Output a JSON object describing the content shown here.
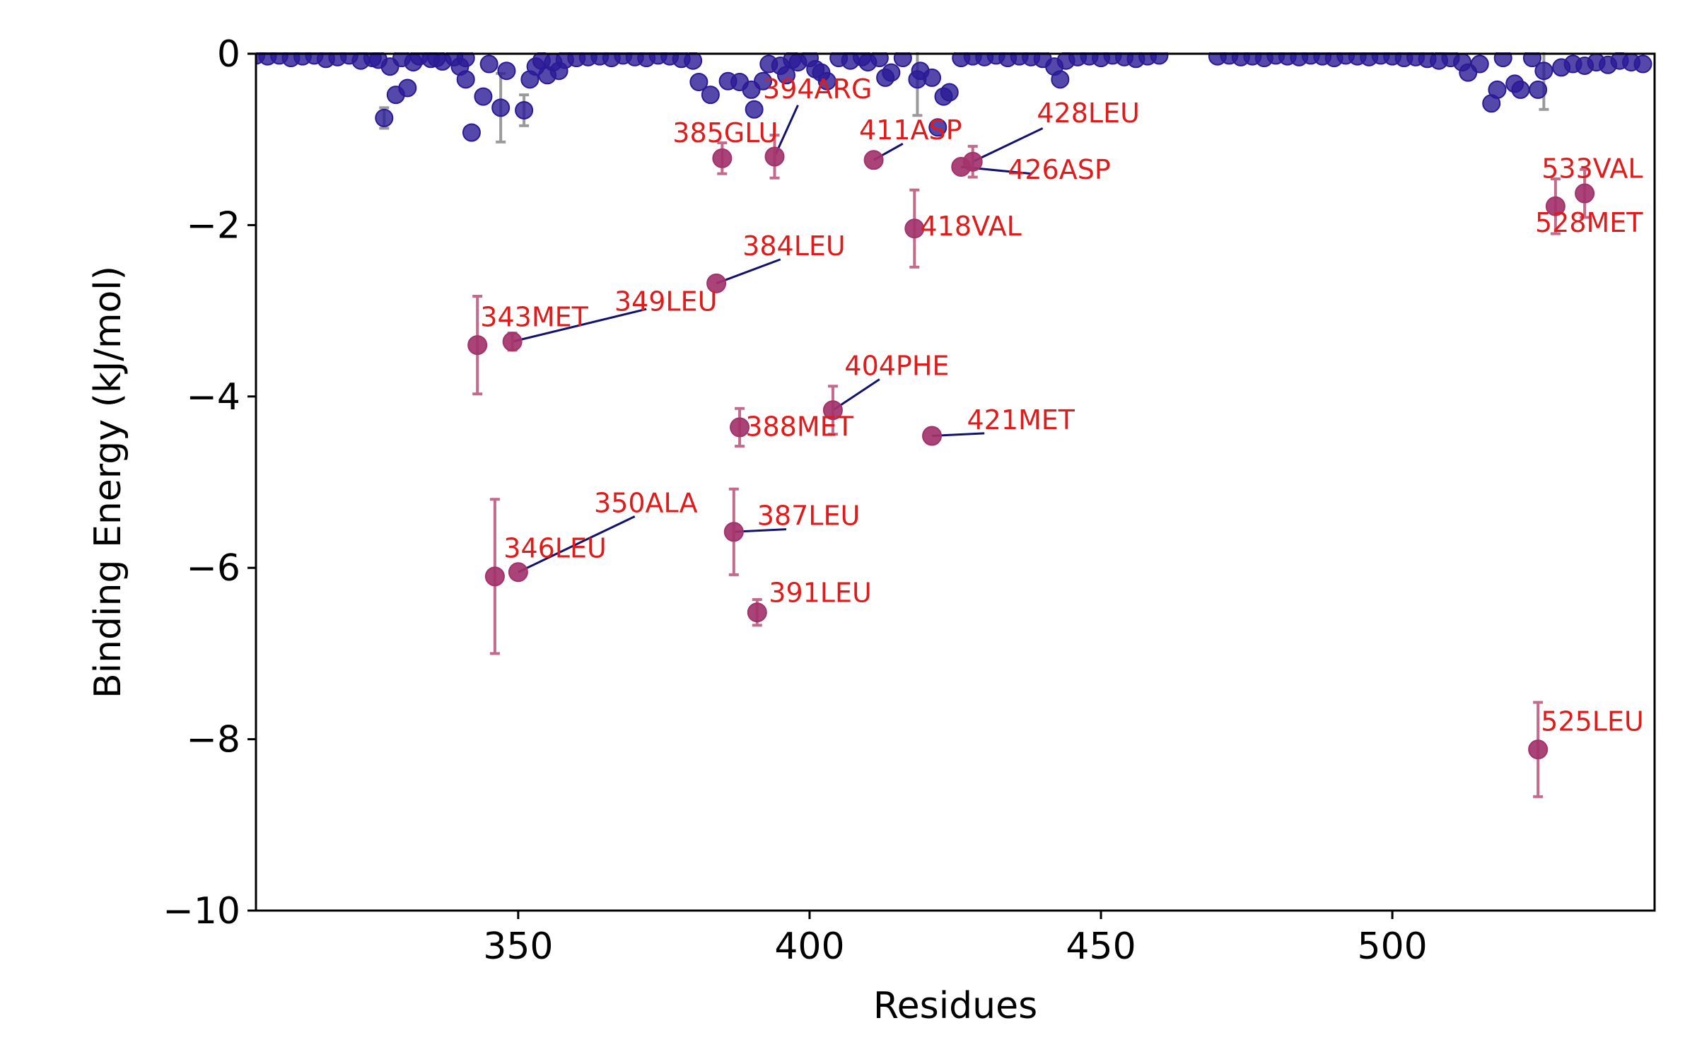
{
  "chart_data": {
    "type": "scatter",
    "title": "",
    "xlabel": "Residues",
    "ylabel": "Binding Energy (kJ/mol)",
    "xlim": [
      305,
      545
    ],
    "ylim": [
      -10,
      0
    ],
    "xticks": [
      350,
      400,
      450,
      500
    ],
    "yticks": [
      0,
      -2,
      -4,
      -6,
      -8,
      -10
    ],
    "xtick_labels": [
      "350",
      "400",
      "450",
      "500"
    ],
    "ytick_labels": [
      "0",
      "−2",
      "−4",
      "−6",
      "−8",
      "−10"
    ],
    "grid": false,
    "legend": "none",
    "colors": {
      "background_point": "#2a1a96",
      "background_error": "#9a9a9a",
      "hotspot_point": "#a3336b",
      "hotspot_error": "#c46b8c",
      "label_text": "#e01b1b",
      "leader_line": "#12126e",
      "axis": "#000000"
    },
    "background_residues": [
      {
        "x": 305,
        "y": -0.02
      },
      {
        "x": 307,
        "y": -0.03
      },
      {
        "x": 309,
        "y": -0.02
      },
      {
        "x": 311,
        "y": -0.05
      },
      {
        "x": 313,
        "y": -0.03
      },
      {
        "x": 315,
        "y": -0.02
      },
      {
        "x": 317,
        "y": -0.06
      },
      {
        "x": 319,
        "y": -0.04
      },
      {
        "x": 321,
        "y": -0.02
      },
      {
        "x": 323,
        "y": -0.08
      },
      {
        "x": 325,
        "y": -0.05
      },
      {
        "x": 326,
        "y": -0.07
      },
      {
        "x": 328,
        "y": -0.15
      },
      {
        "x": 330,
        "y": -0.05
      },
      {
        "x": 332,
        "y": -0.1
      },
      {
        "x": 333,
        "y": -0.03
      },
      {
        "x": 335,
        "y": -0.06
      },
      {
        "x": 337,
        "y": -0.09
      },
      {
        "x": 339,
        "y": -0.04
      },
      {
        "x": 341,
        "y": -0.05
      },
      {
        "x": 327,
        "y": -0.75,
        "err": 0.12
      },
      {
        "x": 329,
        "y": -0.48
      },
      {
        "x": 331,
        "y": -0.4
      },
      {
        "x": 336,
        "y": -0.05
      },
      {
        "x": 340,
        "y": -0.15
      },
      {
        "x": 341,
        "y": -0.3
      },
      {
        "x": 342,
        "y": -0.92
      },
      {
        "x": 344,
        "y": -0.5
      },
      {
        "x": 345,
        "y": -0.12
      },
      {
        "x": 347,
        "y": -0.63,
        "err": 0.4
      },
      {
        "x": 348,
        "y": -0.2
      },
      {
        "x": 351,
        "y": -0.66,
        "err": 0.18
      },
      {
        "x": 352,
        "y": -0.3
      },
      {
        "x": 353,
        "y": -0.15
      },
      {
        "x": 354,
        "y": -0.08
      },
      {
        "x": 355,
        "y": -0.25
      },
      {
        "x": 356,
        "y": -0.1
      },
      {
        "x": 357,
        "y": -0.2
      },
      {
        "x": 358,
        "y": -0.07
      },
      {
        "x": 360,
        "y": -0.05
      },
      {
        "x": 362,
        "y": -0.04
      },
      {
        "x": 364,
        "y": -0.03
      },
      {
        "x": 366,
        "y": -0.05
      },
      {
        "x": 368,
        "y": -0.02
      },
      {
        "x": 370,
        "y": -0.04
      },
      {
        "x": 372,
        "y": -0.05
      },
      {
        "x": 374,
        "y": -0.02
      },
      {
        "x": 376,
        "y": -0.03
      },
      {
        "x": 378,
        "y": -0.06
      },
      {
        "x": 380,
        "y": -0.08
      },
      {
        "x": 381,
        "y": -0.33
      },
      {
        "x": 383,
        "y": -0.48
      },
      {
        "x": 386,
        "y": -0.32
      },
      {
        "x": 388,
        "y": -0.33
      },
      {
        "x": 390,
        "y": -0.42
      },
      {
        "x": 390.5,
        "y": -0.65
      },
      {
        "x": 392,
        "y": -0.32
      },
      {
        "x": 393,
        "y": -0.12
      },
      {
        "x": 395,
        "y": -0.14
      },
      {
        "x": 396,
        "y": -0.25
      },
      {
        "x": 397,
        "y": -0.07
      },
      {
        "x": 398,
        "y": -0.1
      },
      {
        "x": 400,
        "y": -0.05
      },
      {
        "x": 401,
        "y": -0.18
      },
      {
        "x": 402,
        "y": -0.22
      },
      {
        "x": 403,
        "y": -0.32
      },
      {
        "x": 405,
        "y": -0.05
      },
      {
        "x": 407,
        "y": -0.08
      },
      {
        "x": 409,
        "y": -0.04
      },
      {
        "x": 410,
        "y": -0.1
      },
      {
        "x": 412,
        "y": -0.05
      },
      {
        "x": 413,
        "y": -0.28
      },
      {
        "x": 414,
        "y": -0.22
      },
      {
        "x": 416,
        "y": -0.05
      },
      {
        "x": 418.5,
        "y": -0.3,
        "err": 0.42
      },
      {
        "x": 419,
        "y": -0.2
      },
      {
        "x": 421,
        "y": -0.28
      },
      {
        "x": 422,
        "y": -0.86
      },
      {
        "x": 423,
        "y": -0.5
      },
      {
        "x": 424,
        "y": -0.45
      },
      {
        "x": 426,
        "y": -0.05
      },
      {
        "x": 428,
        "y": -0.03
      },
      {
        "x": 430,
        "y": -0.04
      },
      {
        "x": 432,
        "y": -0.02
      },
      {
        "x": 434,
        "y": -0.05
      },
      {
        "x": 436,
        "y": -0.03
      },
      {
        "x": 438,
        "y": -0.04
      },
      {
        "x": 440,
        "y": -0.06
      },
      {
        "x": 442,
        "y": -0.15
      },
      {
        "x": 443,
        "y": -0.3
      },
      {
        "x": 444,
        "y": -0.08
      },
      {
        "x": 446,
        "y": -0.04
      },
      {
        "x": 448,
        "y": -0.03
      },
      {
        "x": 450,
        "y": -0.05
      },
      {
        "x": 452,
        "y": -0.02
      },
      {
        "x": 454,
        "y": -0.04
      },
      {
        "x": 456,
        "y": -0.06
      },
      {
        "x": 458,
        "y": -0.03
      },
      {
        "x": 460,
        "y": -0.02
      },
      {
        "x": 470,
        "y": -0.03
      },
      {
        "x": 472,
        "y": -0.02
      },
      {
        "x": 474,
        "y": -0.04
      },
      {
        "x": 476,
        "y": -0.03
      },
      {
        "x": 478,
        "y": -0.05
      },
      {
        "x": 480,
        "y": -0.02
      },
      {
        "x": 482,
        "y": -0.03
      },
      {
        "x": 484,
        "y": -0.04
      },
      {
        "x": 486,
        "y": -0.02
      },
      {
        "x": 488,
        "y": -0.03
      },
      {
        "x": 490,
        "y": -0.05
      },
      {
        "x": 492,
        "y": -0.02
      },
      {
        "x": 494,
        "y": -0.03
      },
      {
        "x": 496,
        "y": -0.04
      },
      {
        "x": 498,
        "y": -0.02
      },
      {
        "x": 500,
        "y": -0.03
      },
      {
        "x": 502,
        "y": -0.05
      },
      {
        "x": 504,
        "y": -0.04
      },
      {
        "x": 506,
        "y": -0.06
      },
      {
        "x": 508,
        "y": -0.08
      },
      {
        "x": 510,
        "y": -0.05
      },
      {
        "x": 512,
        "y": -0.1
      },
      {
        "x": 513,
        "y": -0.22
      },
      {
        "x": 515,
        "y": -0.12
      },
      {
        "x": 517,
        "y": -0.58
      },
      {
        "x": 518,
        "y": -0.42
      },
      {
        "x": 519,
        "y": -0.05
      },
      {
        "x": 521,
        "y": -0.35
      },
      {
        "x": 522,
        "y": -0.42
      },
      {
        "x": 524,
        "y": -0.05
      },
      {
        "x": 525,
        "y": -0.42
      },
      {
        "x": 526,
        "y": -0.2,
        "err": 0.45
      },
      {
        "x": 529,
        "y": -0.16
      },
      {
        "x": 531,
        "y": -0.12
      },
      {
        "x": 533,
        "y": -0.14
      },
      {
        "x": 535,
        "y": -0.1
      },
      {
        "x": 537,
        "y": -0.13
      },
      {
        "x": 539,
        "y": -0.08
      },
      {
        "x": 541,
        "y": -0.1
      },
      {
        "x": 543,
        "y": -0.12
      }
    ],
    "hotspot_residues": [
      {
        "label": "343MET",
        "x": 343,
        "y": -3.4,
        "err": 0.57,
        "lx": 343.5,
        "ly": -3.18,
        "anchor": "start"
      },
      {
        "label": "346LEU",
        "x": 346,
        "y": -6.1,
        "err": 0.9,
        "lx": 347.5,
        "ly": -5.88,
        "anchor": "start"
      },
      {
        "label": "349LEU",
        "x": 349,
        "y": -3.36,
        "err": 0.1,
        "lx": 366.5,
        "ly": -3.0,
        "anchor": "start",
        "leader": [
          372,
          -2.98
        ]
      },
      {
        "label": "350ALA",
        "x": 350,
        "y": -6.05,
        "err": 0.0,
        "lx": 363,
        "ly": -5.35,
        "anchor": "start",
        "leader": [
          370,
          -5.4
        ]
      },
      {
        "label": "384LEU",
        "x": 384,
        "y": -2.68,
        "err": 0.0,
        "lx": 388.5,
        "ly": -2.35,
        "anchor": "start",
        "leader": [
          395,
          -2.4
        ]
      },
      {
        "label": "385GLU",
        "x": 385,
        "y": -1.22,
        "err": 0.18,
        "lx": 376.5,
        "ly": -1.03,
        "anchor": "start"
      },
      {
        "label": "387LEU",
        "x": 387,
        "y": -5.58,
        "err": 0.5,
        "lx": 391,
        "ly": -5.5,
        "anchor": "start",
        "leader": [
          396,
          -5.55
        ]
      },
      {
        "label": "388MET",
        "x": 388,
        "y": -4.36,
        "err": 0.22,
        "lx": 389,
        "ly": -4.46,
        "anchor": "start"
      },
      {
        "label": "391LEU",
        "x": 391,
        "y": -6.52,
        "err": 0.15,
        "lx": 393,
        "ly": -6.4,
        "anchor": "start"
      },
      {
        "label": "394ARG",
        "x": 394,
        "y": -1.2,
        "err": 0.25,
        "lx": 392,
        "ly": -0.52,
        "anchor": "start",
        "leader": [
          398,
          -0.6
        ]
      },
      {
        "label": "404PHE",
        "x": 404,
        "y": -4.16,
        "err": 0.28,
        "lx": 406,
        "ly": -3.75,
        "anchor": "start",
        "leader": [
          412,
          -3.8
        ]
      },
      {
        "label": "411ASP",
        "x": 411,
        "y": -1.24,
        "err": 0.0,
        "lx": 408.5,
        "ly": -1.0,
        "anchor": "start",
        "leader": [
          416,
          -1.05
        ]
      },
      {
        "label": "418VAL",
        "x": 418,
        "y": -2.04,
        "err": 0.45,
        "lx": 419,
        "ly": -2.12,
        "anchor": "start"
      },
      {
        "label": "421MET",
        "x": 421,
        "y": -4.46,
        "err": 0.0,
        "lx": 427,
        "ly": -4.38,
        "anchor": "start",
        "leader": [
          430,
          -4.43
        ]
      },
      {
        "label": "426ASP",
        "x": 426,
        "y": -1.32,
        "err": 0.0,
        "lx": 434,
        "ly": -1.46,
        "anchor": "start",
        "leader": [
          438,
          -1.4
        ]
      },
      {
        "label": "428LEU",
        "x": 428,
        "y": -1.26,
        "err": 0.18,
        "lx": 439,
        "ly": -0.8,
        "anchor": "start",
        "leader": [
          440,
          -0.87
        ]
      },
      {
        "label": "525LEU",
        "x": 525,
        "y": -8.12,
        "err": 0.55,
        "lx": 525.5,
        "ly": -7.9,
        "anchor": "start"
      },
      {
        "label": "528MET",
        "x": 528,
        "y": -1.78,
        "err": 0.32,
        "lx": 543,
        "ly": -2.08,
        "anchor": "end"
      },
      {
        "label": "533VAL",
        "x": 533,
        "y": -1.63,
        "err": 0.28,
        "lx": 543,
        "ly": -1.45,
        "anchor": "end"
      }
    ]
  }
}
